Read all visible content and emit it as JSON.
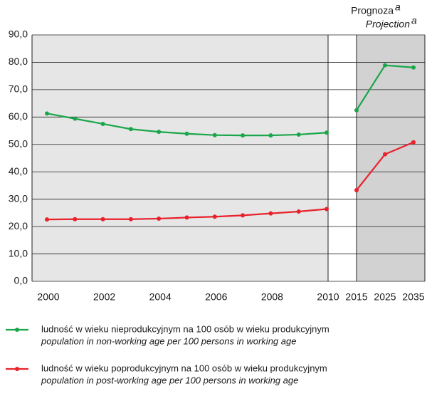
{
  "chart_data": {
    "type": "line",
    "annotation": {
      "line1": "Prognoza",
      "line2": "Projection",
      "mark": "a"
    },
    "categories": [
      "2000",
      null,
      "2002",
      null,
      "2004",
      null,
      "2006",
      null,
      "2008",
      null,
      "2010",
      "2015",
      "2025",
      "2035"
    ],
    "forecast_from": 11,
    "series": [
      {
        "name": "ludność w wieku nieprodukcyjnym na 100 osób w wieku produkcyjnym",
        "name_en": "population in non-working age per 100 persons in working age",
        "color": "#1aa64a",
        "values": [
          61.3,
          59.4,
          57.5,
          55.6,
          54.6,
          53.9,
          53.4,
          53.3,
          53.3,
          53.6,
          54.3,
          62.5,
          78.9,
          78.1
        ]
      },
      {
        "name": "ludność w wieku poprodukcyjnym na 100 osób w wieku produkcyjnym",
        "name_en": "population in post-working age per 100 persons in working age",
        "color": "#e8212a",
        "values": [
          22.6,
          22.7,
          22.7,
          22.7,
          22.9,
          23.3,
          23.6,
          24.1,
          24.8,
          25.5,
          26.4,
          33.3,
          46.4,
          50.8
        ]
      }
    ],
    "ylim": [
      0,
      90
    ],
    "yticks": [
      {
        "value": 0,
        "label": "0,0"
      },
      {
        "value": 10,
        "label": "10,0"
      },
      {
        "value": 20,
        "label": "20,0"
      },
      {
        "value": 30,
        "label": "30,0"
      },
      {
        "value": 40,
        "label": "40,0"
      },
      {
        "value": 50,
        "label": "50,0"
      },
      {
        "value": 60,
        "label": "60,0"
      },
      {
        "value": 70,
        "label": "70,0"
      },
      {
        "value": 80,
        "label": "80,0"
      },
      {
        "value": 90,
        "label": "90,0"
      }
    ],
    "grid": true
  }
}
